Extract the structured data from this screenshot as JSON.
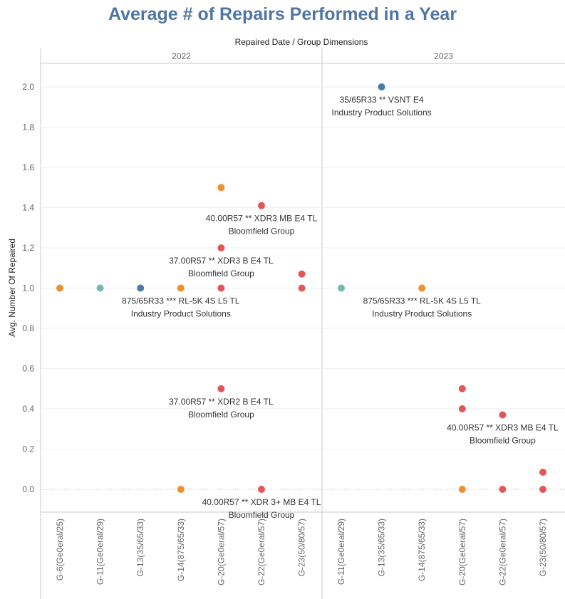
{
  "chart_data": {
    "type": "scatter",
    "title": "Average # of Repairs Performed in a Year",
    "subtitle": "Repaired Date  /  Group Dimensions",
    "ylabel": "Avg. Number Of Repaired",
    "ylim": [
      -0.12,
      2.12
    ],
    "yticks": [
      "0.0",
      "0.2",
      "0.4",
      "0.6",
      "0.8",
      "1.0",
      "1.2",
      "1.4",
      "1.6",
      "1.8",
      "2.0"
    ],
    "grid": true,
    "colors": {
      "orange": "#f28e2b",
      "teal": "#76b7b2",
      "blue": "#4e79a7",
      "red": "#e15759"
    },
    "panels": [
      {
        "label": "2022",
        "categories": [
          "G-6(Ge0eral/25)",
          "G-11(Ge0eral/29)",
          "G-13(35/65/33)",
          "G-14(875/65/33)",
          "G-20(Ge0eral/57)",
          "G-22(Ge0eral/57)",
          "G-23(50/80/57)"
        ],
        "points": [
          {
            "category": "G-6(Ge0eral/25)",
            "y": 1.0,
            "color": "orange"
          },
          {
            "category": "G-11(Ge0eral/29)",
            "y": 1.0,
            "color": "teal"
          },
          {
            "category": "G-13(35/65/33)",
            "y": 1.0,
            "color": "blue"
          },
          {
            "category": "G-14(875/65/33)",
            "y": 1.0,
            "color": "orange"
          },
          {
            "category": "G-14(875/65/33)",
            "y": 0.0,
            "color": "orange"
          },
          {
            "category": "G-20(Ge0eral/57)",
            "y": 1.5,
            "color": "orange"
          },
          {
            "category": "G-20(Ge0eral/57)",
            "y": 1.2,
            "color": "red"
          },
          {
            "category": "G-20(Ge0eral/57)",
            "y": 1.0,
            "color": "red"
          },
          {
            "category": "G-20(Ge0eral/57)",
            "y": 0.5,
            "color": "red"
          },
          {
            "category": "G-22(Ge0eral/57)",
            "y": 1.41,
            "color": "red"
          },
          {
            "category": "G-22(Ge0eral/57)",
            "y": 0.0,
            "color": "red"
          },
          {
            "category": "G-23(50/80/57)",
            "y": 1.07,
            "color": "red"
          },
          {
            "category": "G-23(50/80/57)",
            "y": 1.0,
            "color": "red"
          }
        ],
        "annotations": [
          {
            "category": "G-22(Ge0eral/57)",
            "y": 1.41,
            "line1": "40.00R57 ** XDR3 MB E4 TL",
            "line2": "Bloomfield Group"
          },
          {
            "category": "G-20(Ge0eral/57)",
            "y": 1.2,
            "line1": "37.00R57 ** XDR3 B E4 TL",
            "line2": "Bloomfield Group"
          },
          {
            "category": "G-14(875/65/33)",
            "y": 1.0,
            "line1": "875/65R33 *** RL-5K 4S L5 TL",
            "line2": "Industry Product Solutions"
          },
          {
            "category": "G-20(Ge0eral/57)",
            "y": 0.5,
            "line1": "37.00R57 ** XDR2 B E4 TL",
            "line2": "Bloomfield Group"
          },
          {
            "category": "G-22(Ge0eral/57)",
            "y": 0.0,
            "line1": "40.00R57 ** XDR 3+ MB E4 TL",
            "line2": "Bloomfield Group"
          }
        ]
      },
      {
        "label": "2023",
        "categories": [
          "G-11(Ge0eral/29)",
          "G-13(35/65/33)",
          "G-14(875/65/33)",
          "G-20(Ge0eral/57)",
          "G-22(Ge0eral/57)",
          "G-23(50/80/57)"
        ],
        "points": [
          {
            "category": "G-11(Ge0eral/29)",
            "y": 1.0,
            "color": "teal"
          },
          {
            "category": "G-13(35/65/33)",
            "y": 2.0,
            "color": "blue"
          },
          {
            "category": "G-14(875/65/33)",
            "y": 1.0,
            "color": "orange"
          },
          {
            "category": "G-20(Ge0eral/57)",
            "y": 0.5,
            "color": "red"
          },
          {
            "category": "G-20(Ge0eral/57)",
            "y": 0.4,
            "color": "red"
          },
          {
            "category": "G-20(Ge0eral/57)",
            "y": 0.0,
            "color": "orange"
          },
          {
            "category": "G-22(Ge0eral/57)",
            "y": 0.37,
            "color": "red"
          },
          {
            "category": "G-22(Ge0eral/57)",
            "y": 0.0,
            "color": "red"
          },
          {
            "category": "G-23(50/80/57)",
            "y": 0.085,
            "color": "red"
          },
          {
            "category": "G-23(50/80/57)",
            "y": 0.0,
            "color": "red"
          }
        ],
        "annotations": [
          {
            "category": "G-13(35/65/33)",
            "y": 2.0,
            "line1": "35/65R33 ** VSNT E4",
            "line2": "Industry Product Solutions"
          },
          {
            "category": "G-14(875/65/33)",
            "y": 1.0,
            "line1": "875/65R33 *** RL-5K 4S L5 TL",
            "line2": "Industry Product Solutions"
          },
          {
            "category": "G-22(Ge0eral/57)",
            "y": 0.37,
            "line1": "40.00R57 ** XDR3 MB E4 TL",
            "line2": "Bloomfield Group"
          }
        ]
      }
    ]
  }
}
